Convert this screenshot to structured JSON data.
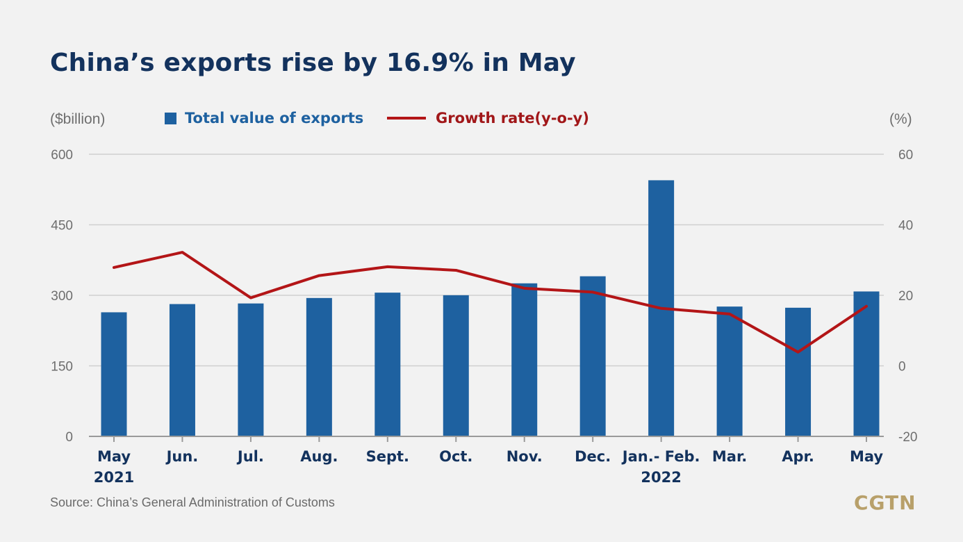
{
  "title": "China’s exports rise by 16.9% in May",
  "units": {
    "left": "($billion)",
    "right": "(%)"
  },
  "legend": {
    "bar_label": "Total value of exports",
    "line_label": "Growth rate(y-o-y)"
  },
  "source": "Source: China’s General Administration of Customs",
  "logo": "CGTN",
  "colors": {
    "bar": "#1e61a0",
    "line": "#b31517",
    "title": "#13325d",
    "background": "#f2f2f2",
    "logo": "#b8a06a"
  },
  "chart_data": {
    "type": "bar",
    "categories": [
      [
        "May",
        "2021"
      ],
      [
        "Jun."
      ],
      [
        "Jul."
      ],
      [
        "Aug."
      ],
      [
        "Sept."
      ],
      [
        "Oct."
      ],
      [
        "Nov."
      ],
      [
        "Dec."
      ],
      [
        "Jan.- Feb.",
        "2022"
      ],
      [
        "Mar."
      ],
      [
        "Apr."
      ],
      [
        "May"
      ]
    ],
    "series": [
      {
        "name": "Total value of exports",
        "type": "bar",
        "axis": "left",
        "values": [
          263.9,
          281.4,
          282.7,
          294.3,
          305.7,
          300.2,
          325.5,
          340.5,
          544.7,
          276.1,
          273.6,
          308.2
        ]
      },
      {
        "name": "Growth rate(y-o-y)",
        "type": "line",
        "axis": "right",
        "values": [
          27.9,
          32.2,
          19.3,
          25.6,
          28.1,
          27.1,
          22.0,
          20.9,
          16.3,
          14.7,
          3.9,
          16.9
        ]
      }
    ],
    "y_left": {
      "label": "($billion)",
      "ticks": [
        0,
        150,
        300,
        450,
        600
      ],
      "range": [
        0,
        600
      ]
    },
    "y_right": {
      "label": "(%)",
      "ticks": [
        -20,
        0,
        20,
        40,
        60
      ],
      "range": [
        -20,
        60
      ]
    },
    "grid": true,
    "legend_position": "top"
  }
}
